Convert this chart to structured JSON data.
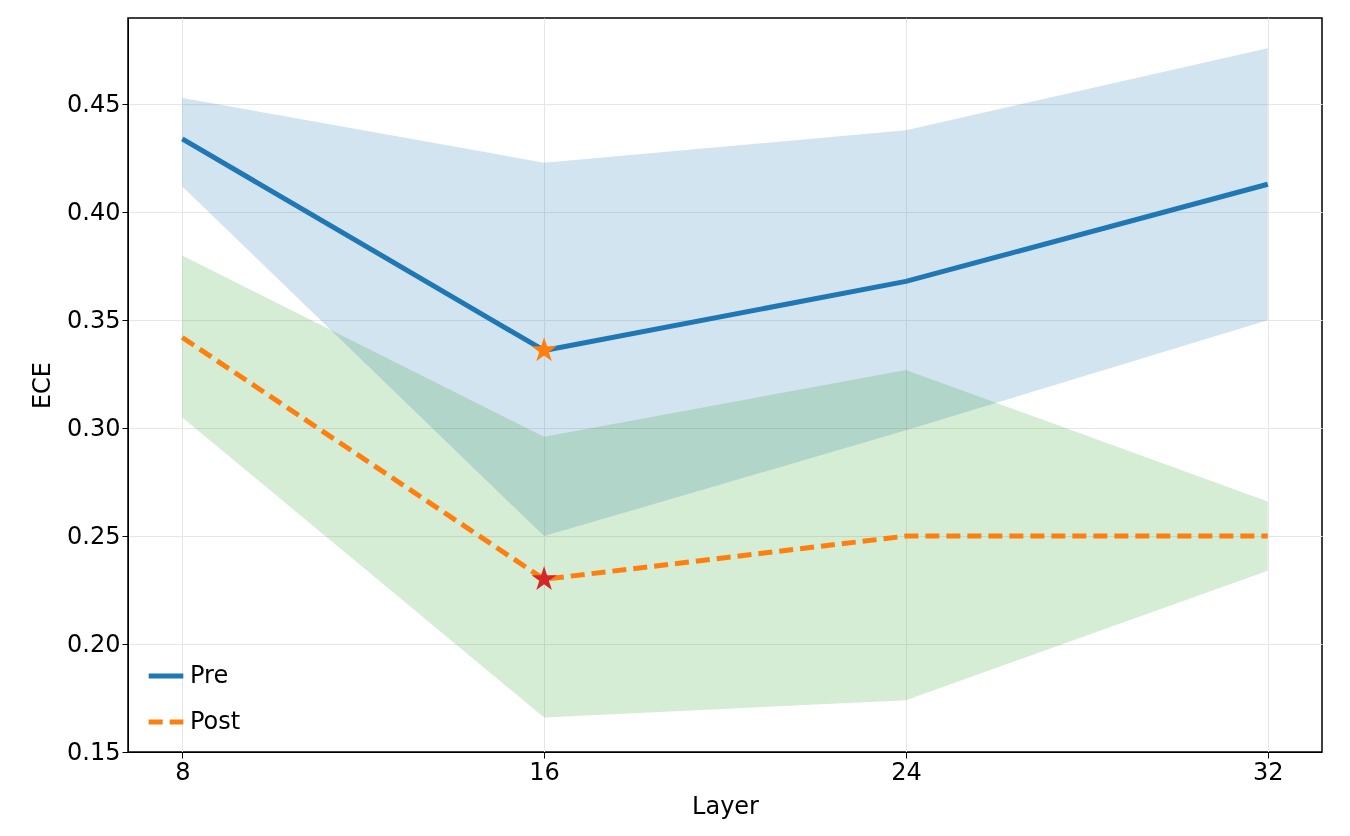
{
  "chart_data": {
    "type": "line",
    "xlabel": "Layer",
    "ylabel": "ECE",
    "x": [
      8,
      16,
      24,
      32
    ],
    "xlim": [
      6.8,
      33.2
    ],
    "xticks": [
      8,
      16,
      24,
      32
    ],
    "ylim": [
      0.15,
      0.49
    ],
    "yticks": [
      0.15,
      {
        "value": 0.2,
        "label": "0.20"
      },
      0.25,
      {
        "value": 0.3,
        "label": "0.30"
      },
      0.35,
      {
        "value": 0.4,
        "label": "0.40"
      },
      0.45
    ],
    "grid": true,
    "legend": "bottom left",
    "series": [
      {
        "name": "Pre",
        "color": "#1f77b4",
        "line_style": "solid",
        "marker": "none",
        "values": [
          0.434,
          0.336,
          0.368,
          0.413
        ],
        "lower": [
          0.412,
          0.25,
          0.299,
          0.35
        ],
        "upper": [
          0.453,
          0.423,
          0.438,
          0.476
        ]
      },
      {
        "type": "area",
        "color": "#2ca02c",
        "values": [
          null,
          null,
          null,
          null
        ],
        "lower": [
          0.305,
          0.166,
          0.174,
          0.234
        ],
        "upper": [
          0.38,
          0.296,
          0.327,
          0.266
        ]
      },
      {
        "name": "Post",
        "color": "#ff7f0e",
        "line_style": "dashed",
        "marker": "none",
        "values": [
          0.342,
          0.23,
          0.25,
          0.25
        ]
      },
      {
        "type": "scatter",
        "color": "#ff7f0e",
        "marker": "star",
        "x": [
          16
        ],
        "values": [
          0.336
        ]
      },
      {
        "type": "scatter",
        "color": "#d62728",
        "marker": "star",
        "x": [
          16
        ],
        "values": [
          0.23
        ]
      }
    ]
  }
}
